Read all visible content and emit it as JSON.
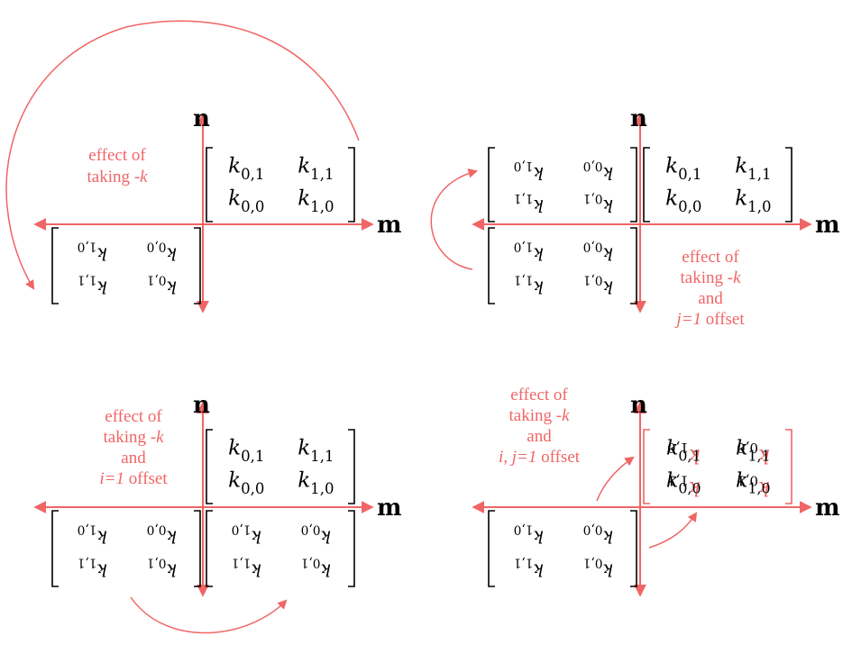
{
  "colors": {
    "accent": "#f06565",
    "ink": "#000000"
  },
  "axes": {
    "vertical_label": "n",
    "horizontal_label": "m"
  },
  "matrix": {
    "top_left": [
      "k",
      "0,1"
    ],
    "top_right": [
      "k",
      "1,1"
    ],
    "bottom_left": [
      "k",
      "0,0"
    ],
    "bottom_right": [
      "k",
      "1,0"
    ]
  },
  "panels": [
    {
      "id": "top-left",
      "note_lines": [
        [
          {
            "t": "effect of",
            "i": false
          }
        ],
        [
          {
            "t": "taking -",
            "i": false
          },
          {
            "t": "k",
            "i": true
          }
        ]
      ]
    },
    {
      "id": "top-right",
      "note_lines": [
        [
          {
            "t": "effect of",
            "i": false
          }
        ],
        [
          {
            "t": "taking -",
            "i": false
          },
          {
            "t": "k",
            "i": true
          }
        ],
        [
          {
            "t": "and",
            "i": false
          }
        ],
        [
          {
            "t": "j=1",
            "i": true
          },
          {
            "t": " offset",
            "i": false
          }
        ]
      ]
    },
    {
      "id": "bottom-left",
      "note_lines": [
        [
          {
            "t": "effect of",
            "i": false
          }
        ],
        [
          {
            "t": "taking -",
            "i": false
          },
          {
            "t": "k",
            "i": true
          }
        ],
        [
          {
            "t": "and",
            "i": false
          }
        ],
        [
          {
            "t": "i=1",
            "i": true
          },
          {
            "t": " offset",
            "i": false
          }
        ]
      ]
    },
    {
      "id": "bottom-right",
      "note_lines": [
        [
          {
            "t": "effect of",
            "i": false
          }
        ],
        [
          {
            "t": "taking -",
            "i": false
          },
          {
            "t": "k",
            "i": true
          }
        ],
        [
          {
            "t": "and",
            "i": false
          }
        ],
        [
          {
            "t": "i, j=1",
            "i": true
          },
          {
            "t": " offset",
            "i": false
          }
        ]
      ]
    }
  ]
}
